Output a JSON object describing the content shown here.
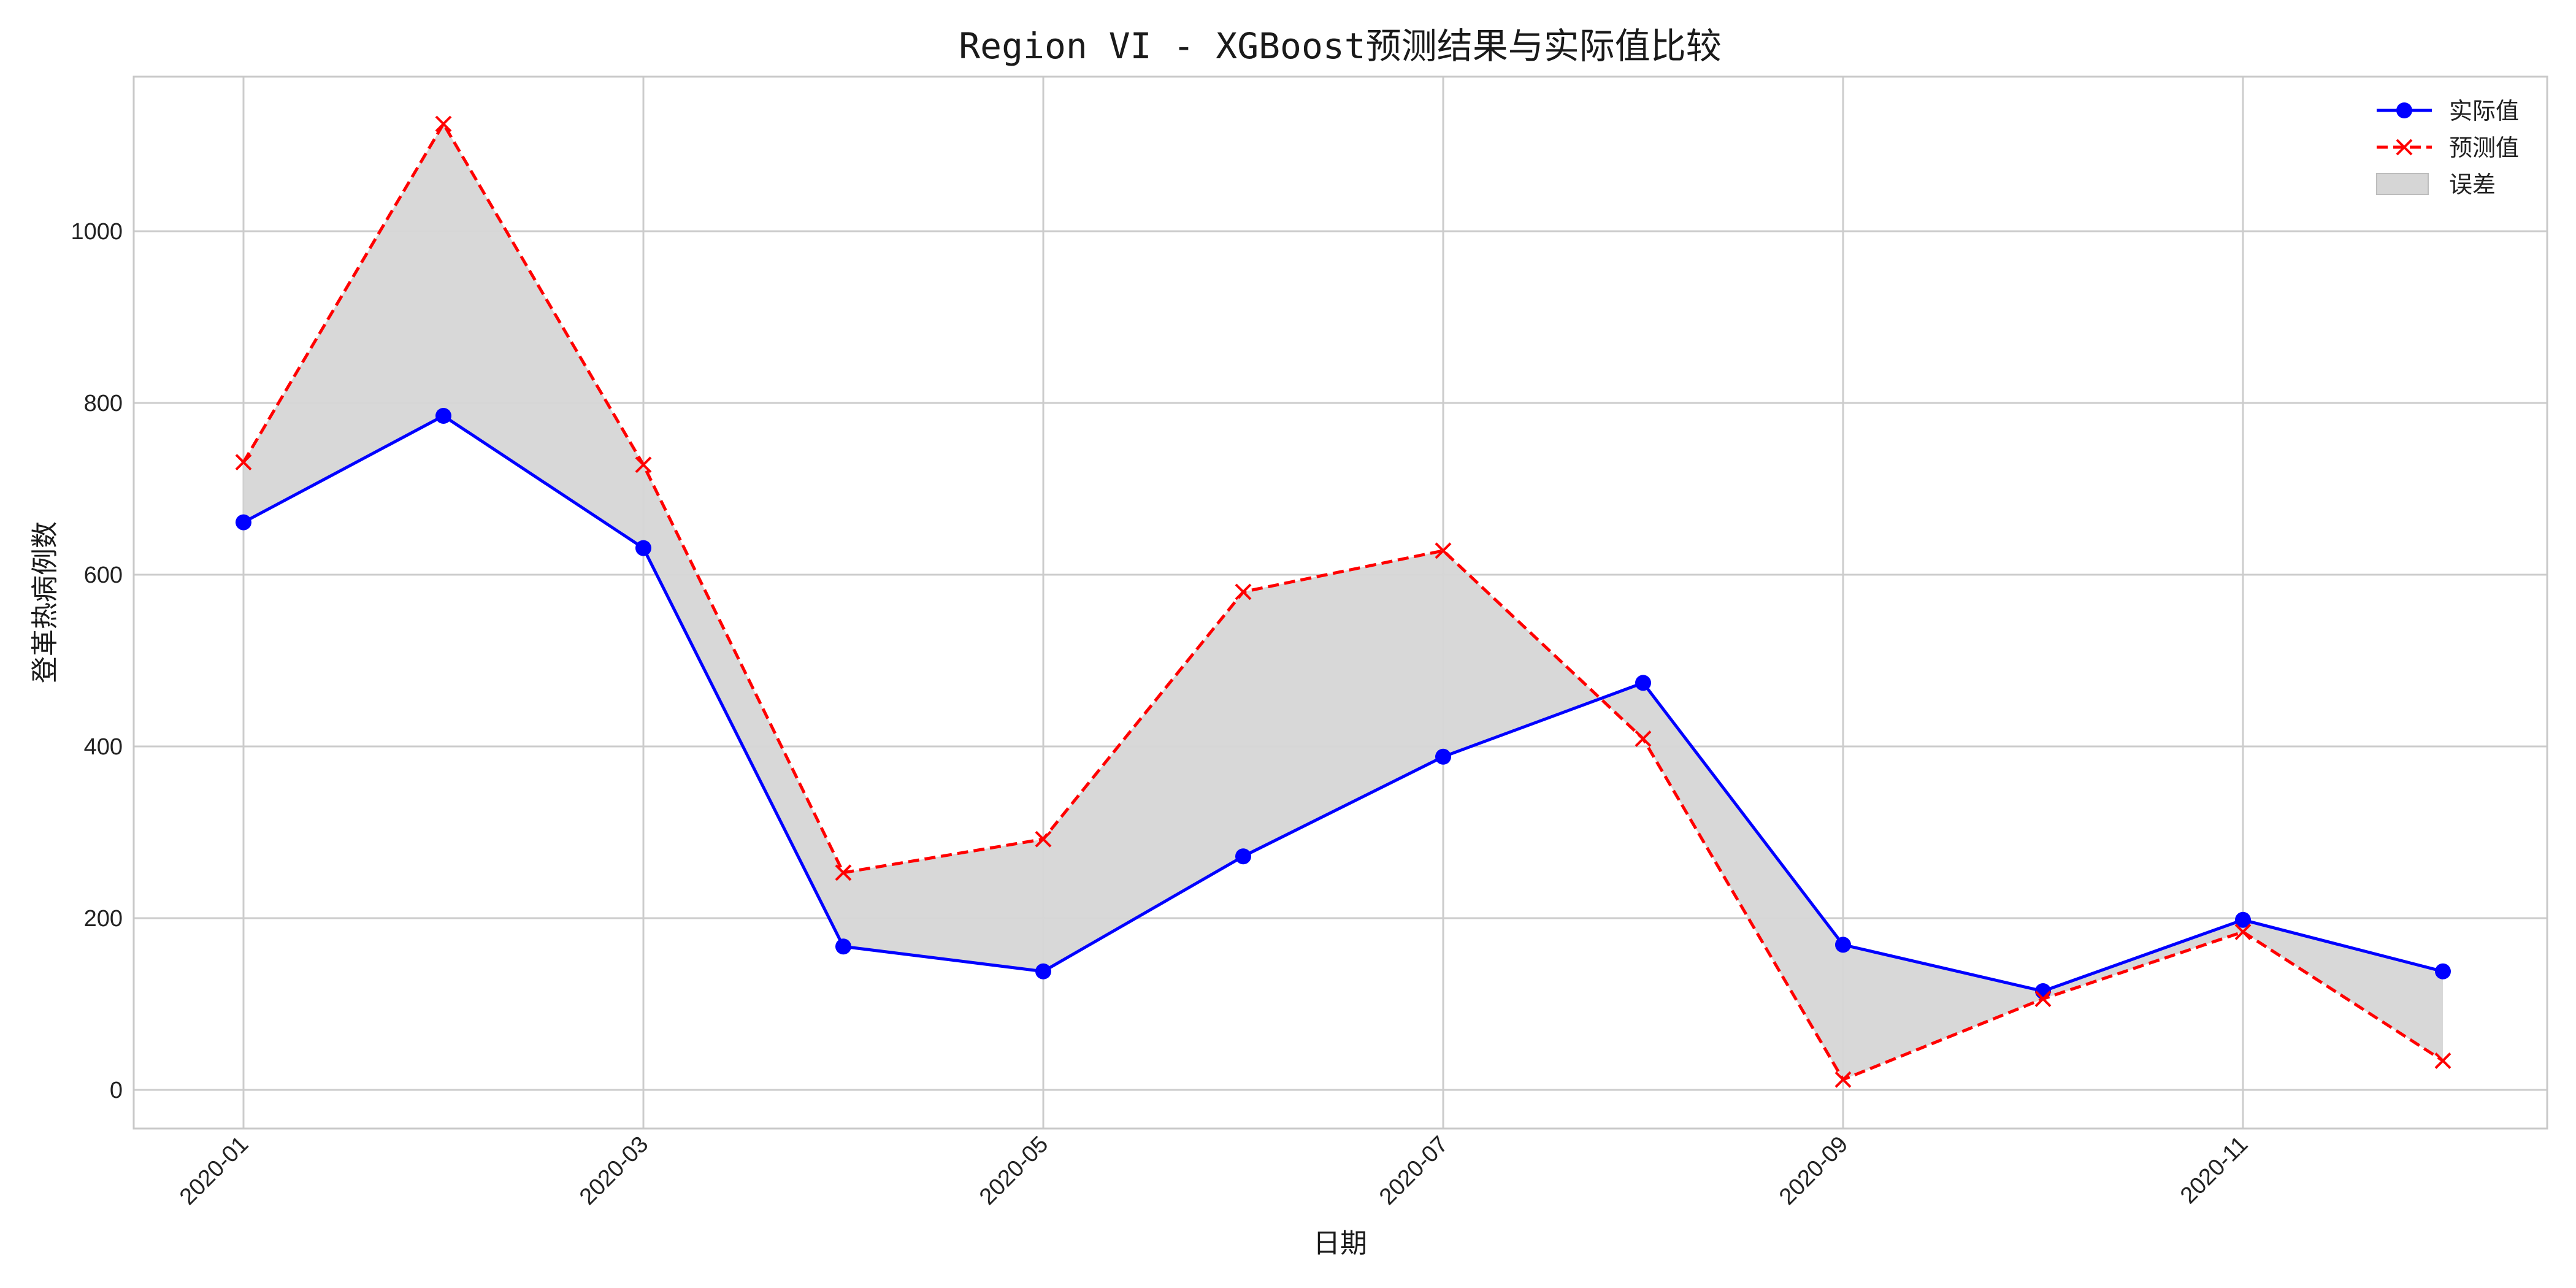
{
  "chart_data": {
    "type": "line",
    "title": "Region VI - XGBoost预测结果与实际值比较",
    "xlabel": "日期",
    "ylabel": "登革热病例数",
    "x": [
      "2020-01",
      "2020-02",
      "2020-03",
      "2020-04",
      "2020-05",
      "2020-06",
      "2020-07",
      "2020-08",
      "2020-09",
      "2020-10",
      "2020-11",
      "2020-12"
    ],
    "x_tick_labels": [
      "2020-01",
      "2020-03",
      "2020-05",
      "2020-07",
      "2020-09",
      "2020-11"
    ],
    "y_ticks": [
      0,
      200,
      400,
      600,
      800,
      1000
    ],
    "ylim": [
      -45,
      1180
    ],
    "grid": true,
    "legend_position": "top-right",
    "series": [
      {
        "name": "实际值",
        "color": "#0000ff",
        "marker": "circle",
        "line_style": "solid",
        "values": [
          661,
          785,
          631,
          167,
          138,
          272,
          388,
          474,
          169,
          115,
          198,
          138
        ]
      },
      {
        "name": "预测值",
        "color": "#ff0000",
        "marker": "x",
        "line_style": "dashed",
        "values": [
          731,
          1125,
          728,
          253,
          292,
          580,
          628,
          409,
          12,
          106,
          184,
          34
        ]
      }
    ],
    "fill": {
      "name": "误差",
      "color": "#d6d6d6",
      "between": [
        "实际值",
        "预测值"
      ]
    }
  }
}
